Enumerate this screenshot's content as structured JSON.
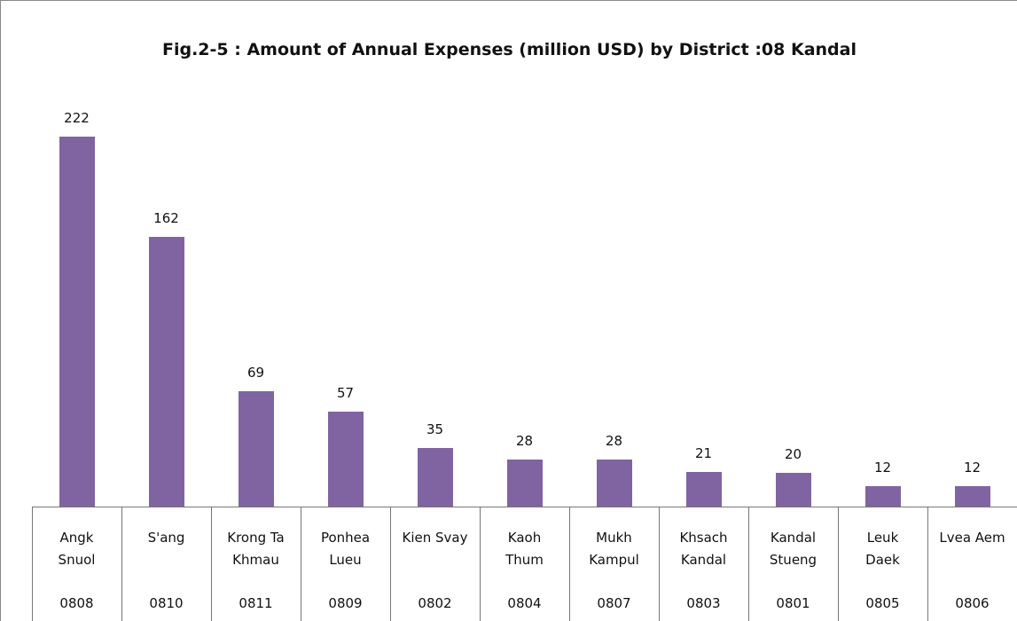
{
  "chart_data": {
    "type": "bar",
    "title": "Fig.2-5 : Amount of Annual Expenses (million USD) by District :08  Kandal",
    "categories": [
      "Angk\nSnuol",
      "S'ang",
      "Krong Ta\nKhmau",
      "Ponhea\nLueu",
      "Kien Svay",
      "Kaoh\nThum",
      "Mukh\nKampul",
      "Khsach\nKandal",
      "Kandal\nStueng",
      "Leuk\nDaek",
      "Lvea Aem"
    ],
    "codes": [
      "0808",
      "0810",
      "0811",
      "0809",
      "0802",
      "0804",
      "0807",
      "0803",
      "0801",
      "0805",
      "0806"
    ],
    "values": [
      222,
      162,
      69,
      57,
      35,
      28,
      28,
      21,
      20,
      12,
      12
    ],
    "color": "#8064a2"
  }
}
